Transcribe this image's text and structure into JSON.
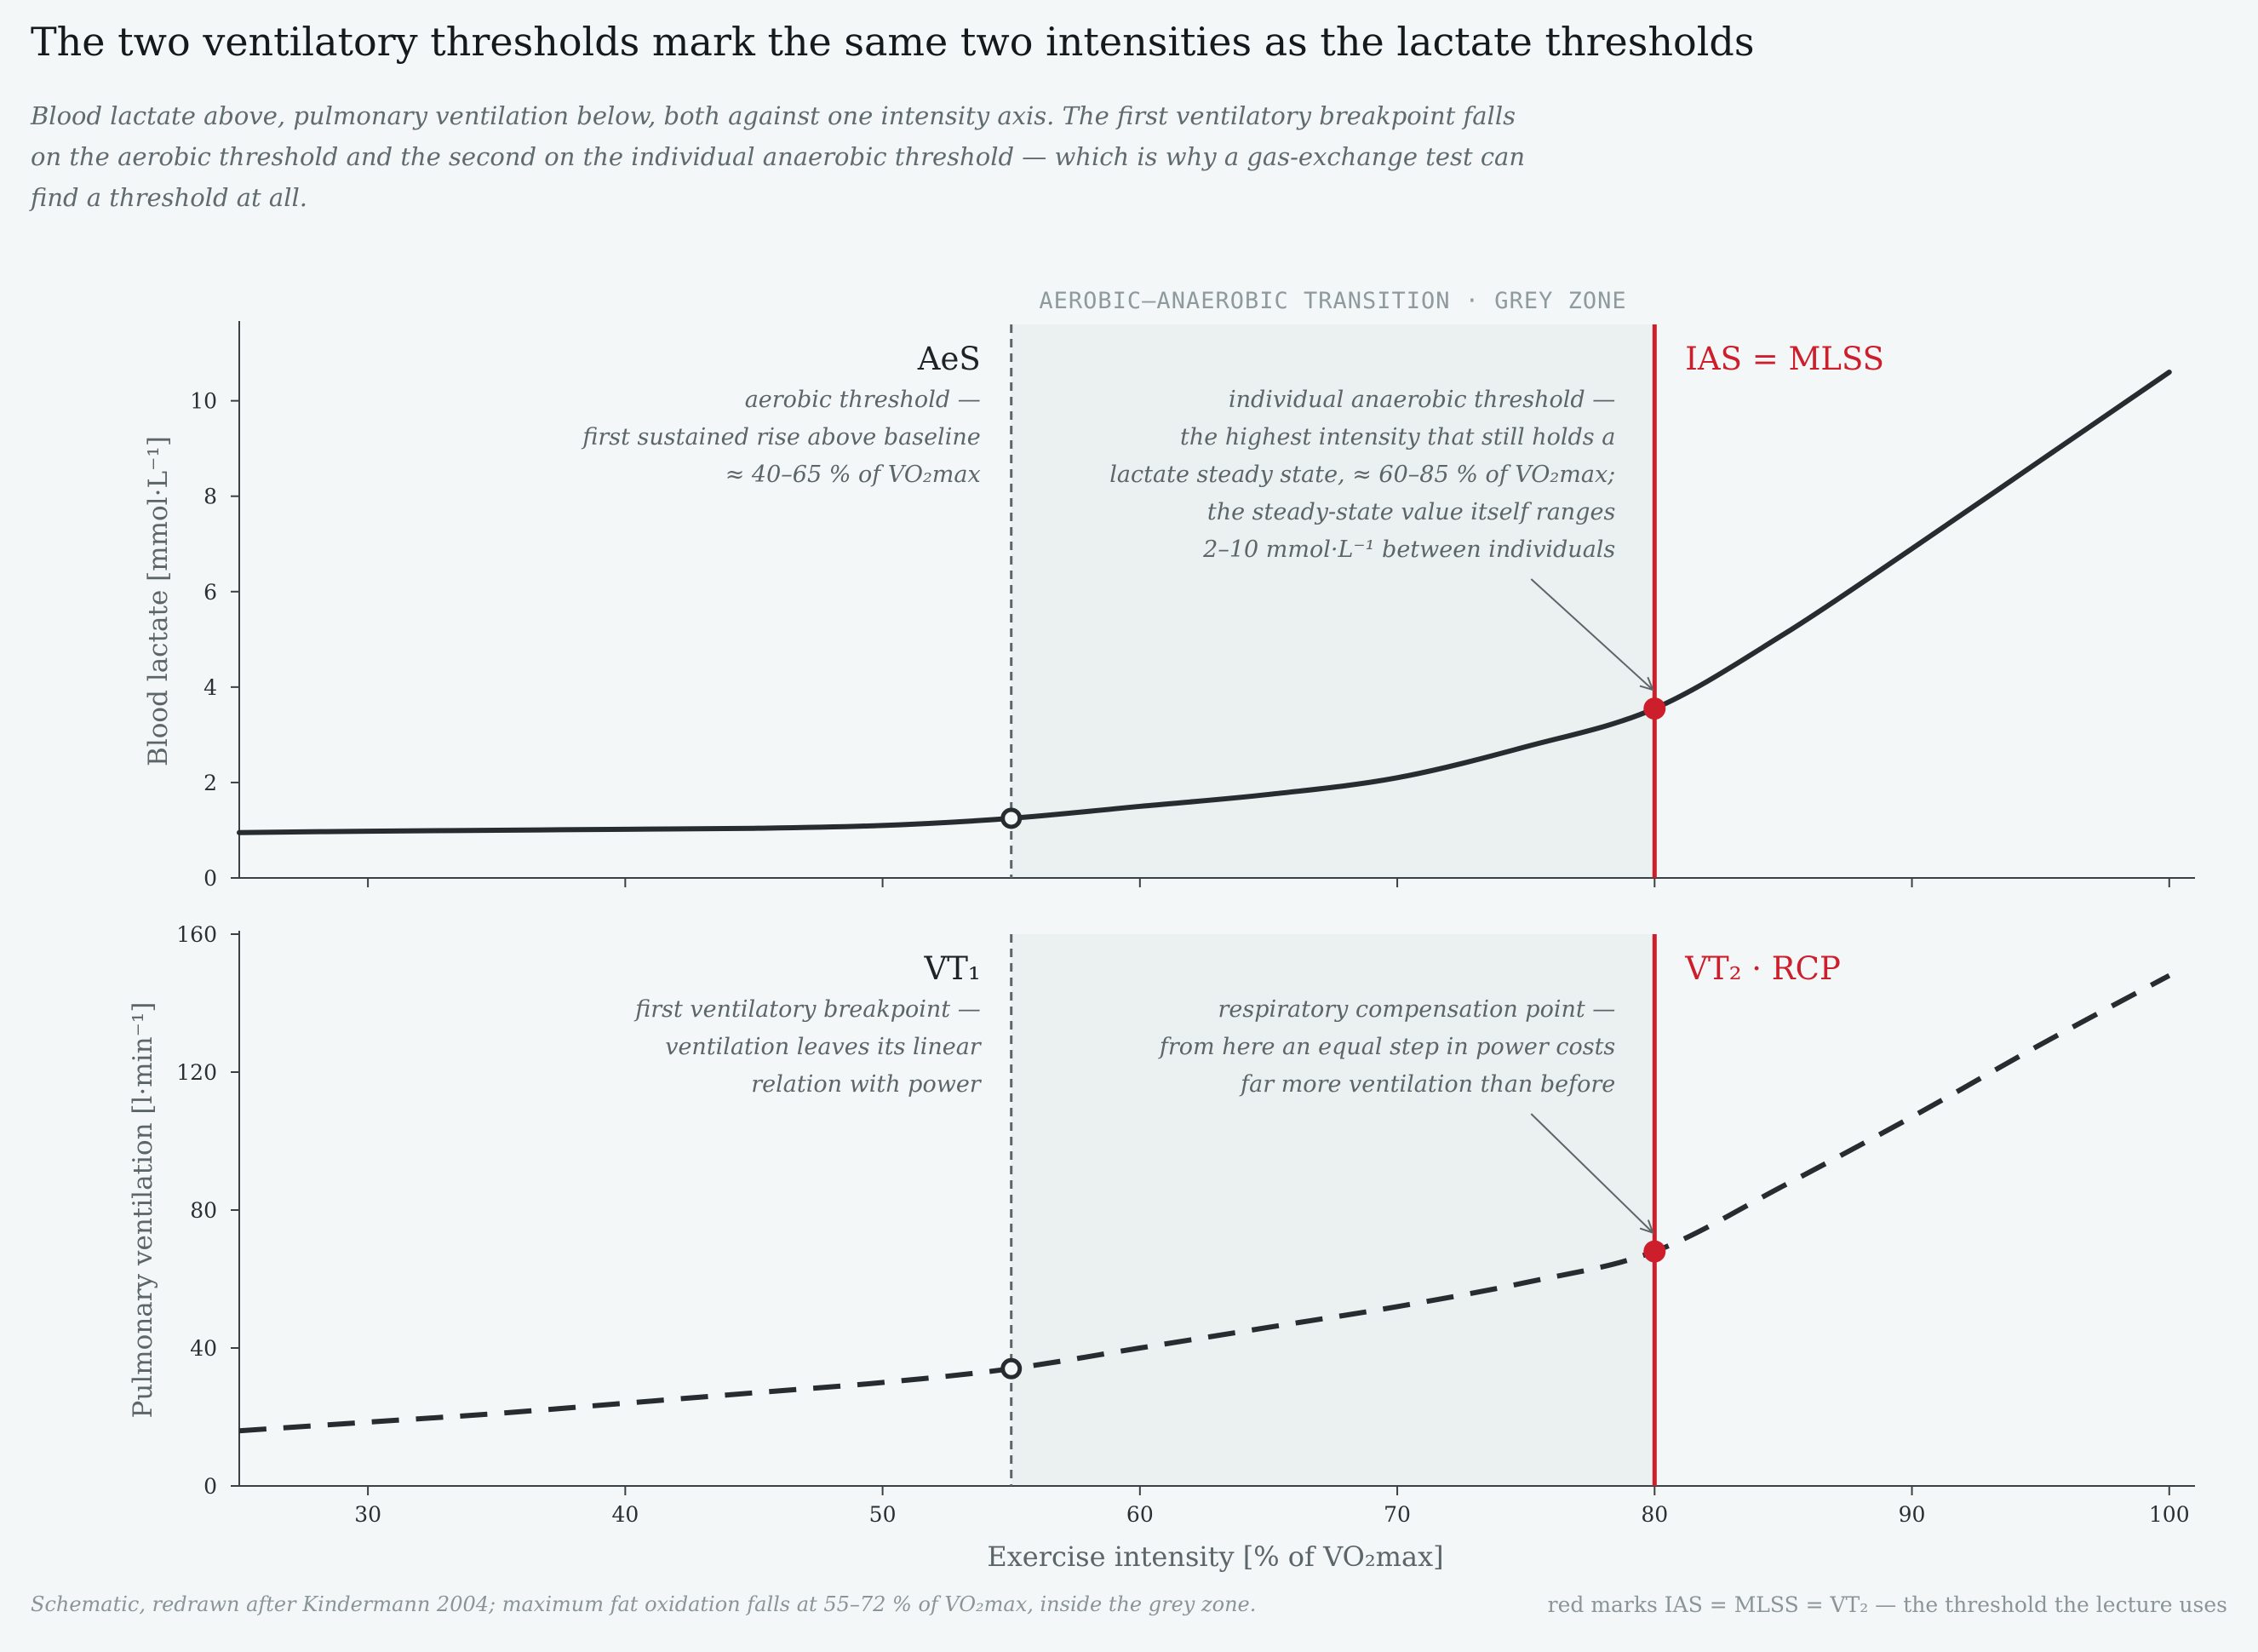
{
  "title": "The two ventilatory thresholds mark the same two intensities as the lactate thresholds",
  "subtitle": "Blood lactate above, pulmonary ventilation below, both against one intensity axis. The first ventilatory breakpoint falls on the aerobic threshold and the second on the individual anaerobic threshold — which is why a gas-exchange test can find a threshold at all.",
  "footer_left": "Schematic, redrawn after Kindermann 2004; maximum fat oxidation falls at 55–72 % of VO₂max, inside the grey zone.",
  "footer_right": "red marks IAS = MLSS = VT₂ — the threshold the lecture uses",
  "colors": {
    "curve": "#262c30",
    "accent": "#cc1f2b",
    "zone": "#ebf0f0",
    "muted": "#5c6668",
    "background": "#f4f7f8"
  },
  "zone_label": "AEROBIC–ANAEROBIC TRANSITION  ·  GREY ZONE",
  "chart_data": [
    {
      "type": "line",
      "panel": "top",
      "ylabel": "Blood lactate  [mmol·L⁻¹]",
      "ylim": [
        0,
        11.6
      ],
      "yticks": [
        0,
        2,
        4,
        6,
        8,
        10
      ],
      "xlim": [
        25,
        101
      ],
      "line_style": "solid",
      "x": [
        25,
        30,
        35,
        40,
        45,
        50,
        55,
        60,
        65,
        70,
        75,
        80,
        85,
        90,
        95,
        100
      ],
      "values": [
        0.95,
        0.98,
        1.0,
        1.02,
        1.04,
        1.1,
        1.25,
        1.5,
        1.75,
        2.1,
        2.75,
        3.55,
        5.1,
        6.9,
        8.75,
        10.6
      ],
      "markers": [
        {
          "x": 55,
          "y": 1.25,
          "style": "open"
        },
        {
          "x": 80,
          "y": 3.55,
          "style": "filled"
        }
      ],
      "thresholds": [
        {
          "x": 55,
          "label": "AeS",
          "style": "dashed",
          "note": [
            "aerobic threshold —",
            "first sustained rise above baseline",
            "≈ 40–65 % of VO₂max"
          ]
        },
        {
          "x": 80,
          "label": "IAS = MLSS",
          "style": "solid-red",
          "note": [
            "individual anaerobic threshold —",
            "the highest intensity that still holds a",
            "lactate steady state, ≈ 60–85 % of VO₂max;",
            "the steady-state value itself ranges",
            "2–10 mmol·L⁻¹ between individuals"
          ]
        }
      ]
    },
    {
      "type": "line",
      "panel": "bottom",
      "ylabel": "Pulmonary ventilation  [l·min⁻¹]",
      "xlabel": "Exercise intensity  [% of VO₂max]",
      "ylim": [
        0,
        160
      ],
      "yticks": [
        0,
        40,
        80,
        120,
        160
      ],
      "xlim": [
        25,
        101
      ],
      "xticks": [
        30,
        40,
        50,
        60,
        70,
        80,
        90,
        100
      ],
      "line_style": "dashed",
      "x": [
        25,
        30,
        35,
        40,
        45,
        50,
        55,
        60,
        65,
        70,
        75,
        80,
        85,
        90,
        95,
        100
      ],
      "values": [
        16,
        18.5,
        21,
        24,
        27,
        30,
        34,
        40,
        46,
        52,
        59,
        68,
        87,
        107,
        128,
        148
      ],
      "markers": [
        {
          "x": 55,
          "y": 34,
          "style": "open"
        },
        {
          "x": 80,
          "y": 68,
          "style": "filled"
        }
      ],
      "thresholds": [
        {
          "x": 55,
          "label": "VT₁",
          "style": "dashed",
          "note": [
            "first ventilatory breakpoint —",
            "ventilation leaves its linear",
            "relation with power"
          ]
        },
        {
          "x": 80,
          "label": "VT₂  ·  RCP",
          "style": "solid-red",
          "note": [
            "respiratory compensation point —",
            "from here an equal step in power costs",
            "far more ventilation than before"
          ]
        }
      ]
    }
  ]
}
